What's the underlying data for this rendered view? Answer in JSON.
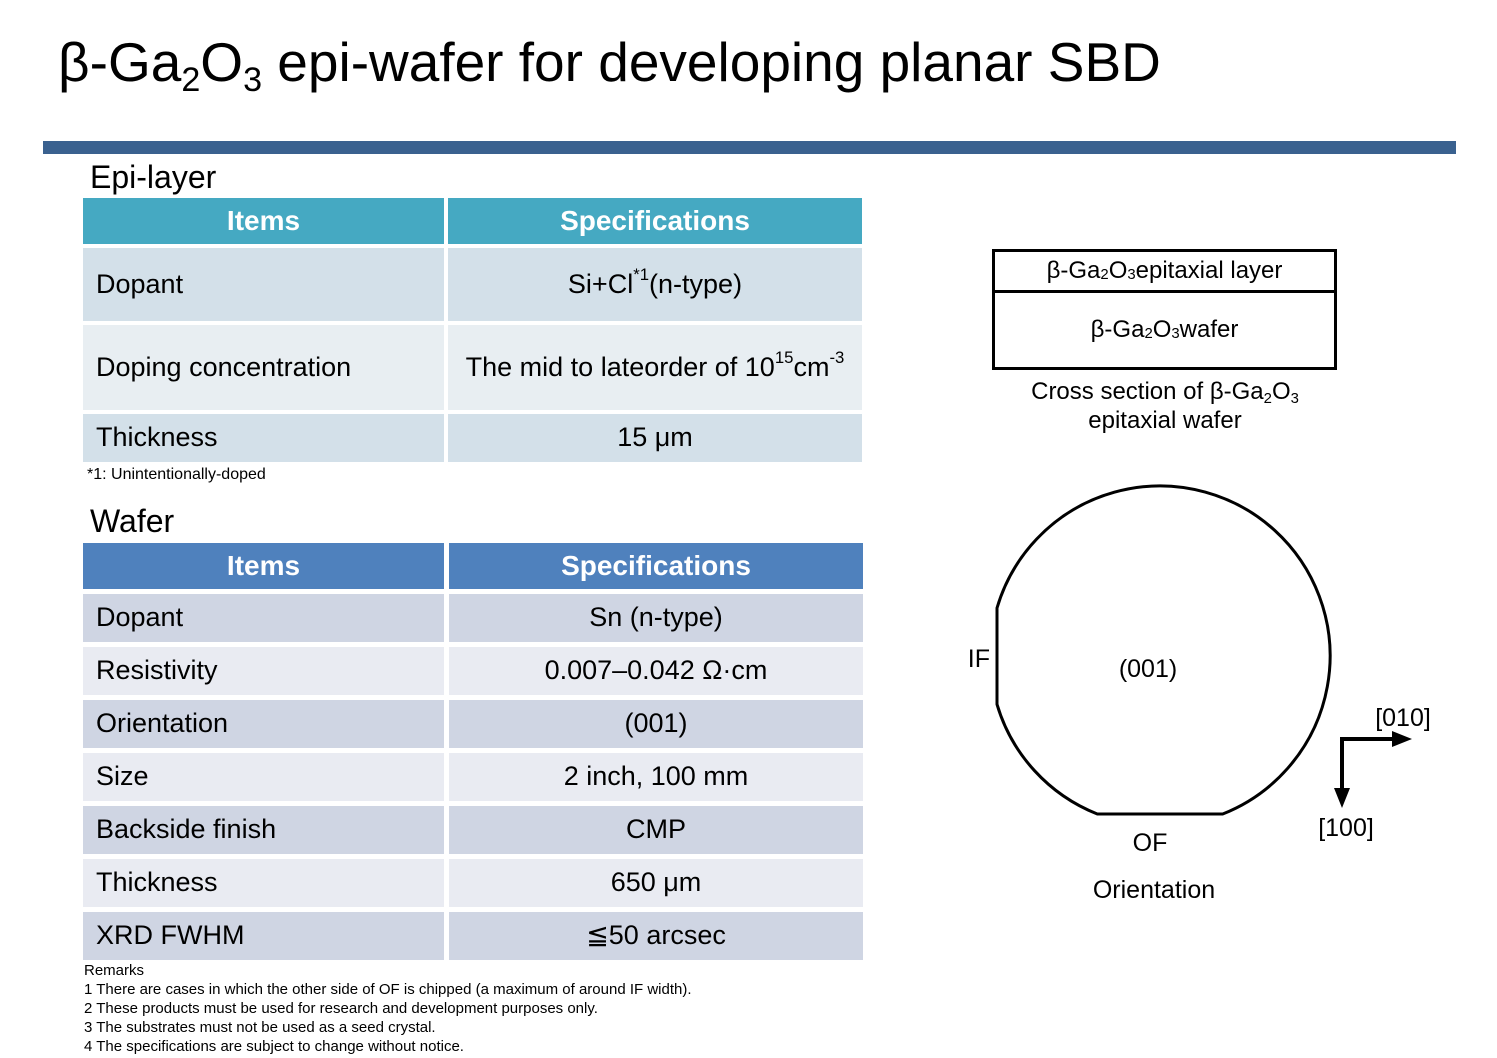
{
  "colors": {
    "text": "#000000",
    "line": "#000000",
    "header_text": "#FFFFFF",
    "divider": "#3A618F",
    "epi_header_bg": "#45A9C2",
    "epi_row_dark": "#D3E0E9",
    "epi_row_light": "#E8EEF2",
    "wafer_header_bg": "#4F81BD",
    "wafer_row_dark": "#CFD5E3",
    "wafer_row_light": "#E9EBF2"
  },
  "title": {
    "segments": [
      {
        "t": "β-Ga"
      },
      {
        "t": "2",
        "v": "sub"
      },
      {
        "t": "O"
      },
      {
        "t": "3",
        "v": "sub"
      },
      {
        "t": " epi-wafer for developing planar SBD"
      }
    ]
  },
  "epi_section": {
    "heading": "Epi-layer",
    "table": {
      "columns": [
        "Items",
        "Specifications"
      ],
      "rows": [
        {
          "item": "Dopant",
          "spec": [
            {
              "t": "Si+Cl"
            },
            {
              "t": "*1",
              "v": "sup"
            },
            {
              "t": " (n-type)"
            }
          ]
        },
        {
          "item": "Doping concentration",
          "spec": [
            {
              "t": "The mid to late"
            },
            {
              "v": "br"
            },
            {
              "t": "order of 10"
            },
            {
              "t": "15",
              "v": "sup"
            },
            {
              "t": " cm"
            },
            {
              "t": "-3",
              "v": "sup"
            }
          ]
        },
        {
          "item": "Thickness",
          "spec": [
            {
              "t": "15 μm"
            }
          ]
        }
      ]
    },
    "footnote": "*1: Unintentionally-doped"
  },
  "wafer_section": {
    "heading": "Wafer",
    "table": {
      "columns": [
        "Items",
        "Specifications"
      ],
      "rows": [
        {
          "item": "Dopant",
          "spec": "Sn (n-type)"
        },
        {
          "item": "Resistivity",
          "spec": "0.007–0.042 Ω·cm"
        },
        {
          "item": "Orientation",
          "spec": "(001)"
        },
        {
          "item": "Size",
          "spec": "2 inch, 100 mm"
        },
        {
          "item": "Backside finish",
          "spec": "CMP"
        },
        {
          "item": "Thickness",
          "spec": "650 μm"
        },
        {
          "item": "XRD FWHM",
          "spec": "≦50 arcsec"
        }
      ]
    },
    "remarks": {
      "heading": "Remarks",
      "items": [
        "1 There are cases in which the other side of OF is chipped (a maximum of around IF width).",
        "2 These products must be used for research and development purposes only.",
        "3 The substrates must not be used as a seed crystal.",
        "4 The specifications are subject to change without notice."
      ]
    }
  },
  "cross_section": {
    "layer_label": [
      {
        "t": "β-Ga"
      },
      {
        "t": "2",
        "v": "sub"
      },
      {
        "t": "O"
      },
      {
        "t": "3",
        "v": "sub"
      },
      {
        "t": " epitaxial layer"
      }
    ],
    "wafer_label": [
      {
        "t": "β-Ga"
      },
      {
        "t": "2",
        "v": "sub"
      },
      {
        "t": "O"
      },
      {
        "t": "3",
        "v": "sub"
      },
      {
        "t": " wafer"
      }
    ],
    "caption": [
      {
        "t": "Cross section of β-Ga"
      },
      {
        "t": "2",
        "v": "sub"
      },
      {
        "t": "O"
      },
      {
        "t": "3",
        "v": "sub"
      },
      {
        "v": "br"
      },
      {
        "t": "epitaxial wafer"
      }
    ]
  },
  "orientation_diagram": {
    "if_label": "IF",
    "plane_label": "(001)",
    "of_label": "OF",
    "axis_010": "[010]",
    "axis_100": "[100]",
    "caption": "Orientation"
  }
}
